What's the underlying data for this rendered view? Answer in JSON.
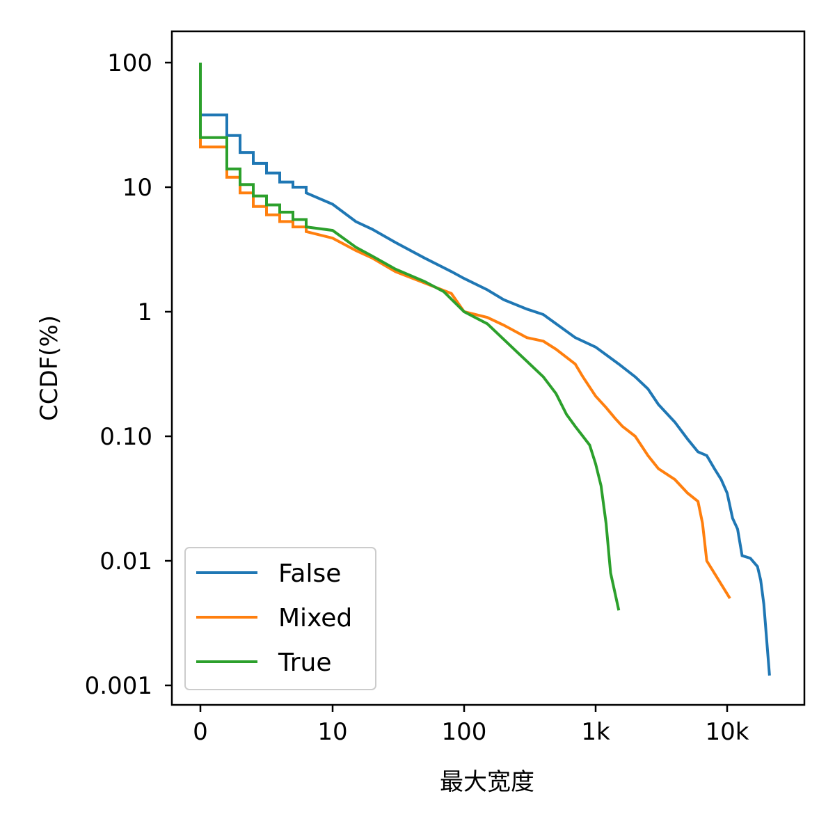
{
  "chart_data": {
    "type": "line",
    "xlabel": "最大宽度",
    "ylabel": "CCDF(%)",
    "xscale": "log (symlog)",
    "yscale": "log",
    "grid": false,
    "legend_placement": "lower-left",
    "x_ticks": [
      {
        "value": 0,
        "label": "0"
      },
      {
        "value": 10,
        "label": "10"
      },
      {
        "value": 100,
        "label": "100"
      },
      {
        "value": 1000,
        "label": "1k"
      },
      {
        "value": 10000,
        "label": "10k"
      }
    ],
    "y_ticks": [
      {
        "value": 100,
        "label": "100"
      },
      {
        "value": 10,
        "label": "10"
      },
      {
        "value": 1,
        "label": "1"
      },
      {
        "value": 0.1,
        "label": "0.10"
      },
      {
        "value": 0.01,
        "label": "0.01"
      },
      {
        "value": 0.001,
        "label": "0.001"
      }
    ],
    "series": [
      {
        "name": "False",
        "color": "#1f77b4",
        "points": [
          [
            0,
            100
          ],
          [
            0,
            38
          ],
          [
            2,
            38
          ],
          [
            2,
            26
          ],
          [
            3,
            26
          ],
          [
            3,
            19
          ],
          [
            4,
            19
          ],
          [
            4,
            15.5
          ],
          [
            5,
            15.5
          ],
          [
            5,
            13
          ],
          [
            6,
            13
          ],
          [
            6,
            11
          ],
          [
            7,
            11
          ],
          [
            7,
            10
          ],
          [
            8,
            10
          ],
          [
            8,
            9
          ],
          [
            10,
            7.3
          ],
          [
            15,
            5.3
          ],
          [
            20,
            4.6
          ],
          [
            30,
            3.6
          ],
          [
            50,
            2.7
          ],
          [
            80,
            2.1
          ],
          [
            100,
            1.85
          ],
          [
            150,
            1.5
          ],
          [
            200,
            1.25
          ],
          [
            300,
            1.05
          ],
          [
            400,
            0.95
          ],
          [
            500,
            0.8
          ],
          [
            700,
            0.62
          ],
          [
            1000,
            0.52
          ],
          [
            1500,
            0.38
          ],
          [
            2000,
            0.3
          ],
          [
            2500,
            0.24
          ],
          [
            3000,
            0.18
          ],
          [
            4000,
            0.13
          ],
          [
            5000,
            0.095
          ],
          [
            6000,
            0.075
          ],
          [
            7000,
            0.07
          ],
          [
            8000,
            0.055
          ],
          [
            9000,
            0.045
          ],
          [
            10000,
            0.035
          ],
          [
            11000,
            0.022
          ],
          [
            12000,
            0.018
          ],
          [
            13000,
            0.011
          ],
          [
            15000,
            0.0105
          ],
          [
            17000,
            0.009
          ],
          [
            18000,
            0.007
          ],
          [
            19000,
            0.0045
          ],
          [
            21000,
            0.0012
          ]
        ]
      },
      {
        "name": "Mixed",
        "color": "#ff7f0e",
        "points": [
          [
            0,
            100
          ],
          [
            0,
            21
          ],
          [
            2,
            21
          ],
          [
            2,
            12
          ],
          [
            3,
            12
          ],
          [
            3,
            9
          ],
          [
            4,
            9
          ],
          [
            4,
            7
          ],
          [
            5,
            7
          ],
          [
            5,
            6
          ],
          [
            6,
            6
          ],
          [
            6,
            5.3
          ],
          [
            7,
            5.3
          ],
          [
            7,
            4.8
          ],
          [
            8,
            4.8
          ],
          [
            8,
            4.4
          ],
          [
            10,
            3.9
          ],
          [
            15,
            3.1
          ],
          [
            20,
            2.7
          ],
          [
            30,
            2.1
          ],
          [
            50,
            1.7
          ],
          [
            80,
            1.4
          ],
          [
            100,
            1.0
          ],
          [
            150,
            0.9
          ],
          [
            200,
            0.78
          ],
          [
            300,
            0.62
          ],
          [
            400,
            0.58
          ],
          [
            500,
            0.5
          ],
          [
            700,
            0.38
          ],
          [
            800,
            0.3
          ],
          [
            1000,
            0.21
          ],
          [
            1200,
            0.17
          ],
          [
            1400,
            0.14
          ],
          [
            1600,
            0.12
          ],
          [
            2000,
            0.1
          ],
          [
            2500,
            0.07
          ],
          [
            3000,
            0.055
          ],
          [
            4000,
            0.045
          ],
          [
            5000,
            0.035
          ],
          [
            6000,
            0.03
          ],
          [
            6500,
            0.02
          ],
          [
            7000,
            0.01
          ],
          [
            10500,
            0.005
          ]
        ]
      },
      {
        "name": "True",
        "color": "#2ca02c",
        "points": [
          [
            0,
            100
          ],
          [
            0,
            25
          ],
          [
            2,
            25
          ],
          [
            2,
            14
          ],
          [
            3,
            14
          ],
          [
            3,
            10.5
          ],
          [
            4,
            10.5
          ],
          [
            4,
            8.5
          ],
          [
            5,
            8.5
          ],
          [
            5,
            7.2
          ],
          [
            6,
            7.2
          ],
          [
            6,
            6.3
          ],
          [
            7,
            6.3
          ],
          [
            7,
            5.5
          ],
          [
            8,
            5.5
          ],
          [
            8,
            4.8
          ],
          [
            10,
            4.5
          ],
          [
            15,
            3.3
          ],
          [
            20,
            2.8
          ],
          [
            30,
            2.2
          ],
          [
            50,
            1.75
          ],
          [
            70,
            1.45
          ],
          [
            100,
            1.0
          ],
          [
            150,
            0.8
          ],
          [
            200,
            0.6
          ],
          [
            250,
            0.48
          ],
          [
            300,
            0.4
          ],
          [
            400,
            0.3
          ],
          [
            500,
            0.22
          ],
          [
            600,
            0.15
          ],
          [
            700,
            0.12
          ],
          [
            800,
            0.1
          ],
          [
            900,
            0.085
          ],
          [
            1000,
            0.06
          ],
          [
            1100,
            0.04
          ],
          [
            1200,
            0.02
          ],
          [
            1300,
            0.008
          ],
          [
            1500,
            0.004
          ]
        ]
      }
    ]
  }
}
